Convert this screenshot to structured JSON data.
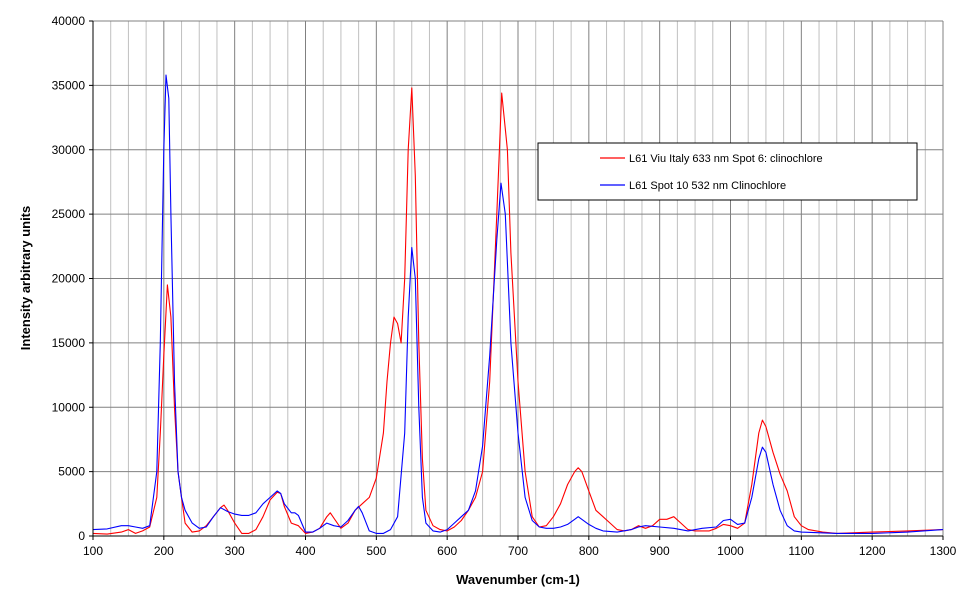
{
  "chart_data": {
    "type": "line",
    "title": "",
    "xlabel": "Wavenumber (cm-1)",
    "ylabel": "Intensity arbitrary units",
    "xlim": [
      100,
      1300
    ],
    "ylim": [
      0,
      40000
    ],
    "xticks": [
      100,
      200,
      300,
      400,
      500,
      600,
      700,
      800,
      900,
      1000,
      1100,
      1200,
      1300
    ],
    "yticks": [
      0,
      5000,
      10000,
      15000,
      20000,
      25000,
      30000,
      35000,
      40000
    ],
    "grid": true,
    "legend_position": "top-right",
    "series": [
      {
        "name": "L61 Viu Italy 633 nm Spot 6: clinochlore",
        "color": "#ff0000",
        "x": [
          100,
          120,
          140,
          150,
          160,
          170,
          180,
          190,
          195,
          200,
          205,
          210,
          215,
          220,
          225,
          230,
          240,
          250,
          260,
          270,
          280,
          285,
          290,
          300,
          310,
          320,
          330,
          340,
          350,
          360,
          365,
          370,
          380,
          390,
          400,
          410,
          420,
          430,
          435,
          440,
          450,
          460,
          470,
          480,
          490,
          500,
          510,
          515,
          520,
          525,
          530,
          535,
          540,
          545,
          550,
          555,
          560,
          565,
          570,
          580,
          590,
          600,
          610,
          620,
          630,
          640,
          650,
          660,
          670,
          677,
          685,
          690,
          700,
          710,
          720,
          730,
          740,
          750,
          760,
          770,
          780,
          785,
          790,
          800,
          810,
          820,
          830,
          840,
          850,
          860,
          870,
          880,
          890,
          900,
          910,
          920,
          930,
          940,
          950,
          960,
          970,
          980,
          990,
          1000,
          1010,
          1020,
          1030,
          1040,
          1045,
          1050,
          1060,
          1070,
          1080,
          1090,
          1100,
          1110,
          1130,
          1150,
          1200,
          1250,
          1300
        ],
        "y": [
          200,
          150,
          300,
          500,
          200,
          400,
          700,
          3000,
          8000,
          14000,
          19500,
          17000,
          10000,
          5000,
          3000,
          1000,
          300,
          400,
          800,
          1500,
          2200,
          2400,
          2000,
          1000,
          200,
          200,
          500,
          1500,
          2800,
          3400,
          3300,
          2300,
          1000,
          800,
          200,
          300,
          600,
          1500,
          1800,
          1400,
          600,
          1000,
          2000,
          2500,
          3000,
          4500,
          8000,
          12000,
          15000,
          17000,
          16500,
          15000,
          20000,
          30000,
          34800,
          28000,
          15000,
          6000,
          2000,
          800,
          500,
          400,
          700,
          1200,
          2000,
          3000,
          5000,
          12000,
          25000,
          34400,
          30000,
          22000,
          12000,
          5000,
          1500,
          700,
          800,
          1500,
          2500,
          4000,
          5000,
          5300,
          5000,
          3500,
          2000,
          1500,
          1000,
          500,
          400,
          500,
          800,
          600,
          800,
          1300,
          1300,
          1500,
          1000,
          500,
          400,
          400,
          400,
          600,
          900,
          800,
          600,
          1000,
          4000,
          8000,
          9000,
          8500,
          6500,
          4800,
          3500,
          1500,
          800,
          500,
          300,
          200,
          300,
          400,
          500
        ]
      },
      {
        "name": "L61 Spot 10 532 nm Clinochlore",
        "color": "#0000ff",
        "x": [
          100,
          120,
          140,
          150,
          160,
          170,
          180,
          190,
          195,
          200,
          203,
          207,
          210,
          215,
          220,
          225,
          230,
          240,
          250,
          260,
          270,
          280,
          290,
          300,
          310,
          320,
          330,
          340,
          350,
          360,
          365,
          370,
          380,
          385,
          390,
          400,
          410,
          420,
          430,
          440,
          450,
          460,
          470,
          475,
          480,
          490,
          500,
          510,
          520,
          530,
          540,
          545,
          550,
          555,
          560,
          565,
          570,
          580,
          590,
          600,
          610,
          620,
          630,
          640,
          650,
          660,
          670,
          676,
          682,
          690,
          700,
          710,
          720,
          730,
          740,
          750,
          760,
          770,
          780,
          785,
          790,
          800,
          810,
          820,
          840,
          860,
          870,
          880,
          900,
          920,
          940,
          960,
          980,
          990,
          1000,
          1010,
          1020,
          1030,
          1040,
          1045,
          1050,
          1060,
          1070,
          1080,
          1090,
          1100,
          1150,
          1200,
          1250,
          1300
        ],
        "y": [
          500,
          550,
          800,
          800,
          700,
          600,
          800,
          5000,
          15000,
          30000,
          35800,
          34000,
          25000,
          12000,
          5000,
          3000,
          2000,
          1000,
          600,
          700,
          1500,
          2200,
          1900,
          1700,
          1600,
          1600,
          1800,
          2500,
          3000,
          3500,
          3300,
          2500,
          1800,
          1800,
          1600,
          300,
          300,
          600,
          1000,
          800,
          700,
          1200,
          2000,
          2300,
          1800,
          400,
          200,
          200,
          500,
          1500,
          8000,
          17000,
          22400,
          20000,
          10000,
          3000,
          1000,
          400,
          300,
          500,
          1000,
          1500,
          2000,
          3500,
          7000,
          14000,
          23000,
          27400,
          25000,
          15000,
          8000,
          3000,
          1200,
          700,
          600,
          600,
          700,
          900,
          1300,
          1500,
          1300,
          900,
          600,
          400,
          300,
          500,
          700,
          800,
          700,
          600,
          400,
          600,
          700,
          1200,
          1300,
          900,
          1000,
          3000,
          6000,
          6900,
          6500,
          4000,
          2000,
          800,
          400,
          300,
          200,
          200,
          300,
          500
        ]
      }
    ]
  }
}
